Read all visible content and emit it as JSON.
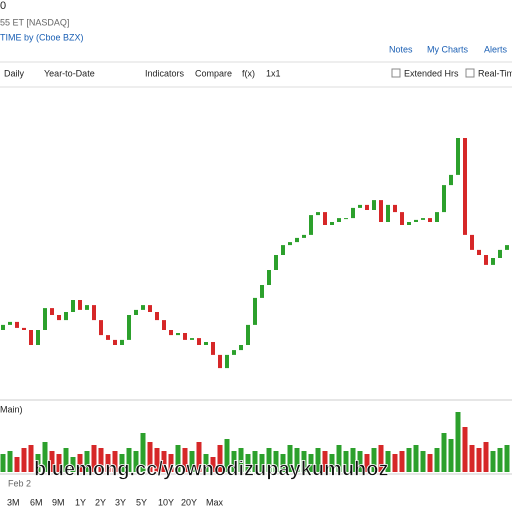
{
  "header": {
    "symbol": "0",
    "exchange": "55 ET [NASDAQ]",
    "source": "TIME by (Cboe BZX)",
    "links": [
      "Notes",
      "My Charts",
      "Alerts"
    ]
  },
  "toolbar": {
    "interval": "Daily",
    "range": "Year-to-Date",
    "items": [
      "Indicators",
      "Compare",
      "f(x)",
      "1x1"
    ],
    "checkboxes": [
      "Extended Hrs",
      "Real-Tim"
    ]
  },
  "volume_label": "Main)",
  "x_label": "Feb 2",
  "range_buttons": [
    "3M",
    "6M",
    "9M",
    "1Y",
    "2Y",
    "3Y",
    "5Y",
    "10Y",
    "20Y",
    "Max"
  ],
  "watermark": "bluemong.cc/yownodizupaykumuhoz",
  "chart_data": {
    "type": "candlestick",
    "ylim": [
      0,
      100
    ],
    "volume_lim": [
      0,
      100
    ],
    "up_color": "#2ca02c",
    "down_color": "#d62728",
    "open": [
      20,
      21.7,
      22.7,
      20.7,
      20,
      15,
      20,
      27.3,
      25,
      23.3,
      26,
      30,
      26.7,
      28.3,
      23.3,
      18.3,
      16.7,
      15,
      16.7,
      25,
      26.7,
      28.3,
      26,
      23.3,
      20,
      18.3,
      19,
      16.7,
      17.3,
      15,
      16,
      11.7,
      7.3,
      11.7,
      13.3,
      15,
      21.7,
      30.7,
      35,
      40,
      45,
      48.3,
      49.3,
      50.7,
      51.7,
      58.3,
      59.3,
      55,
      56,
      57.3,
      57.3,
      60.7,
      61.7,
      60,
      63.3,
      56,
      61.7,
      59.3,
      55,
      56,
      56.7,
      57.3,
      56,
      59.3,
      68.3,
      71.7,
      84,
      51.7,
      46.7,
      45,
      41.7,
      44,
      46.7
    ],
    "close": [
      21.7,
      22.7,
      20.7,
      20,
      15,
      20,
      27.3,
      25,
      23.3,
      26,
      30,
      26.7,
      28.3,
      23.3,
      18.3,
      16.7,
      15,
      16.7,
      25,
      26.7,
      28.3,
      26,
      23.3,
      20,
      18.3,
      19,
      16.7,
      17.3,
      15,
      16,
      11.7,
      7.3,
      11.7,
      13.3,
      15,
      21.7,
      30.7,
      35,
      40,
      45,
      48.3,
      49.3,
      50.7,
      51.7,
      58.3,
      59.3,
      55,
      56,
      57.3,
      57.3,
      60.7,
      61.7,
      60,
      63.3,
      56,
      61.7,
      59.3,
      55,
      56,
      56.7,
      57.3,
      56,
      59.3,
      68.3,
      71.7,
      84,
      51.7,
      46.7,
      45,
      41.7,
      44,
      46.7,
      48.3
    ],
    "volume": [
      30,
      35,
      25,
      40,
      45,
      30,
      50,
      35,
      30,
      40,
      25,
      30,
      35,
      45,
      40,
      30,
      35,
      30,
      40,
      35,
      65,
      50,
      40,
      35,
      30,
      45,
      40,
      35,
      50,
      30,
      25,
      45,
      55,
      35,
      40,
      30,
      35,
      30,
      40,
      35,
      30,
      45,
      40,
      35,
      30,
      40,
      35,
      30,
      45,
      35,
      40,
      35,
      30,
      40,
      45,
      35,
      30,
      35,
      40,
      45,
      35,
      30,
      40,
      65,
      55,
      100,
      75,
      45,
      40,
      50,
      35,
      40,
      45
    ]
  }
}
